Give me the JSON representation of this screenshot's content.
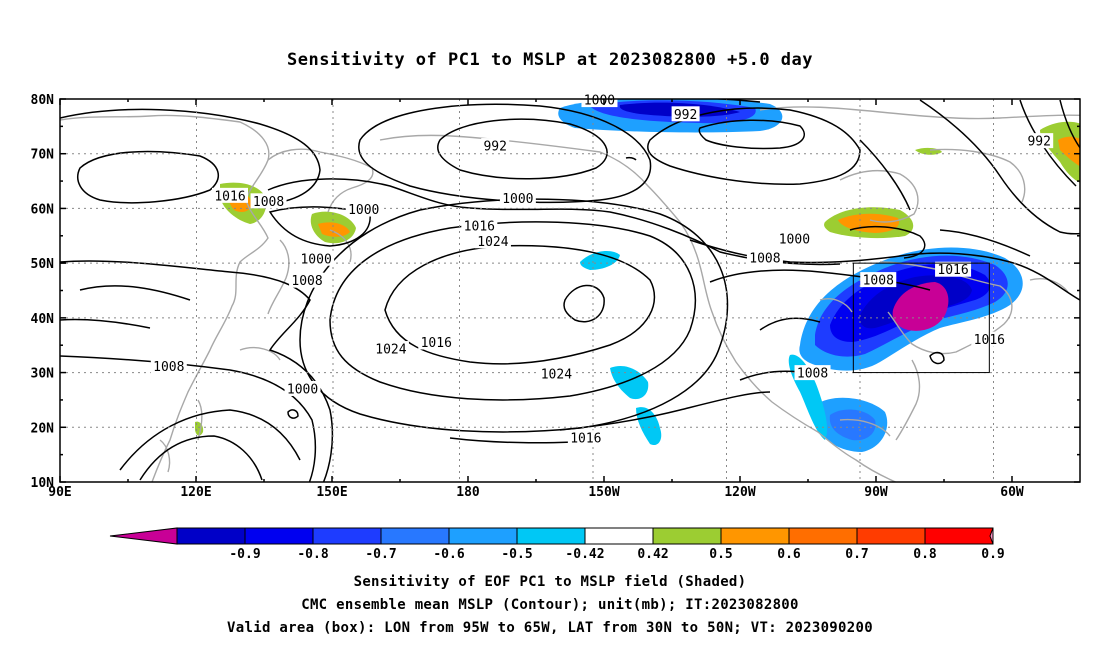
{
  "title": "Sensitivity of PC1 to MSLP at 2023082800 +5.0 day",
  "lat_labels": [
    "80N",
    "70N",
    "60N",
    "50N",
    "40N",
    "30N",
    "20N",
    "10N"
  ],
  "lon_labels": [
    "90E",
    "120E",
    "150E",
    "180",
    "150W",
    "120W",
    "90W",
    "60W"
  ],
  "contour_labels": [
    {
      "text": "1000",
      "lat": 79.8,
      "lon": -151
    },
    {
      "text": "992",
      "lat": 77.2,
      "lon": -132
    },
    {
      "text": "992",
      "lat": 71.4,
      "lon": -174
    },
    {
      "text": "992",
      "lat": 72.3,
      "lon": -54
    },
    {
      "text": "1016",
      "lat": 62.3,
      "lon": 127.5
    },
    {
      "text": "1008",
      "lat": 61.3,
      "lon": 136
    },
    {
      "text": "1000",
      "lat": 59.8,
      "lon": 157
    },
    {
      "text": "1000",
      "lat": 61.8,
      "lon": -169
    },
    {
      "text": "1016",
      "lat": 56.8,
      "lon": -177.5
    },
    {
      "text": "1024",
      "lat": 54.0,
      "lon": -174.5
    },
    {
      "text": "1000",
      "lat": 54.4,
      "lon": -108
    },
    {
      "text": "1008",
      "lat": 50.9,
      "lon": -114.5
    },
    {
      "text": "1000",
      "lat": 50.8,
      "lon": 146.5
    },
    {
      "text": "1008",
      "lat": 46.8,
      "lon": 144.5
    },
    {
      "text": "1008",
      "lat": 46.9,
      "lon": -89.5
    },
    {
      "text": "1016",
      "lat": 48.8,
      "lon": -73
    },
    {
      "text": "1016",
      "lat": 36.0,
      "lon": -65
    },
    {
      "text": "1024",
      "lat": 34.3,
      "lon": 163
    },
    {
      "text": "1016",
      "lat": 35.5,
      "lon": 173
    },
    {
      "text": "1024",
      "lat": 29.7,
      "lon": -160.5
    },
    {
      "text": "1008",
      "lat": 29.9,
      "lon": -104
    },
    {
      "text": "1008",
      "lat": 31.1,
      "lon": 114
    },
    {
      "text": "1000",
      "lat": 27.0,
      "lon": 143.5
    },
    {
      "text": "1016",
      "lat": 18.0,
      "lon": -154
    }
  ],
  "valid_box": {
    "lon_min": -95,
    "lon_max": -65,
    "lat_min": 30,
    "lat_max": 50
  },
  "colorbar": {
    "colors": [
      "#c80096",
      "#0000c8",
      "#0000f0",
      "#1e3cff",
      "#2878ff",
      "#1ea0ff",
      "#00c8f5",
      "#ffffff",
      "#9ccd32",
      "#ff9600",
      "#ff6e00",
      "#ff3c00",
      "#ff0000",
      "#ff96c8"
    ],
    "labels": [
      "-0.9",
      "-0.8",
      "-0.7",
      "-0.6",
      "-0.5",
      "-0.42",
      "0.42",
      "0.5",
      "0.6",
      "0.7",
      "0.8",
      "0.9"
    ]
  },
  "footer": {
    "line1": "Sensitivity of EOF PC1 to MSLP field (Shaded)",
    "line2": "CMC ensemble mean MSLP (Contour); unit(mb); IT:2023082800",
    "line3": "Valid area (box): LON from 95W to 65W, LAT from 30N to 50N; VT: 2023090200"
  }
}
